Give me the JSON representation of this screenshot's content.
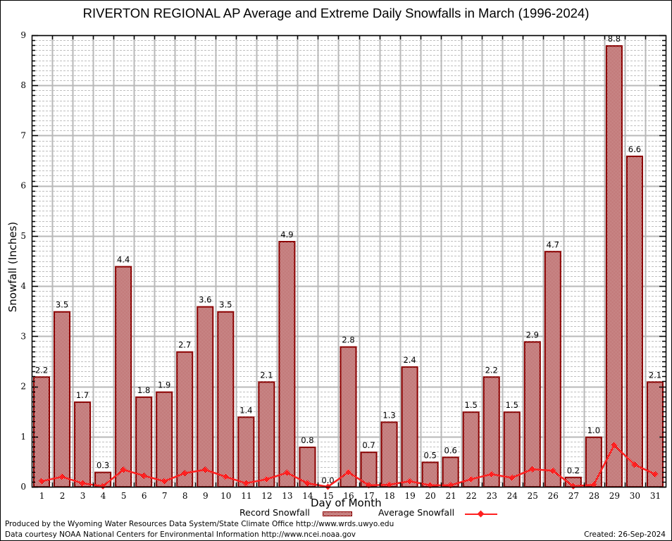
{
  "chart_data": {
    "type": "bar",
    "title": "RIVERTON REGIONAL AP Average and Extreme Daily Snowfalls in March (1996-2024)",
    "xlabel": "Day of Month",
    "ylabel": "Snowfall (Inches)",
    "ylim": [
      0,
      9
    ],
    "yticks": [
      "0",
      "1",
      "2",
      "3",
      "4",
      "5",
      "6",
      "7",
      "8",
      "9"
    ],
    "grid": true,
    "legend_position": "bottom-center",
    "categories": [
      "1",
      "2",
      "3",
      "4",
      "5",
      "6",
      "7",
      "8",
      "9",
      "10",
      "11",
      "12",
      "13",
      "14",
      "15",
      "16",
      "17",
      "18",
      "19",
      "20",
      "21",
      "22",
      "23",
      "24",
      "25",
      "26",
      "27",
      "28",
      "29",
      "30",
      "31"
    ],
    "series": [
      {
        "name": "Record Snowfall",
        "type": "bar",
        "color": "#8b0000",
        "values": [
          2.2,
          3.5,
          1.7,
          0.3,
          4.4,
          1.8,
          1.9,
          2.7,
          3.6,
          3.5,
          1.4,
          2.1,
          4.9,
          0.8,
          0.0,
          2.8,
          0.7,
          1.3,
          2.4,
          0.5,
          0.6,
          1.5,
          2.2,
          1.5,
          2.9,
          4.7,
          0.2,
          1.0,
          8.8,
          6.6,
          2.1
        ],
        "labels": [
          "2.2",
          "3.5",
          "1.7",
          "0.3",
          "4.4",
          "1.8",
          "1.9",
          "2.7",
          "3.6",
          "3.5",
          "1.4",
          "2.1",
          "4.9",
          "0.8",
          "0.0",
          "2.8",
          "0.7",
          "1.3",
          "2.4",
          "0.5",
          "0.6",
          "1.5",
          "2.2",
          "1.5",
          "2.9",
          "4.7",
          "0.2",
          "1.0",
          "8.8",
          "6.6",
          "2.1"
        ]
      },
      {
        "name": "Average Snowfall",
        "type": "line",
        "color": "#ff2020",
        "values": [
          0.11,
          0.2,
          0.07,
          0.01,
          0.34,
          0.22,
          0.11,
          0.27,
          0.34,
          0.2,
          0.07,
          0.15,
          0.28,
          0.07,
          0.0,
          0.29,
          0.03,
          0.04,
          0.11,
          0.03,
          0.03,
          0.15,
          0.25,
          0.18,
          0.35,
          0.32,
          0.01,
          0.04,
          0.83,
          0.44,
          0.25
        ]
      }
    ]
  },
  "legend": {
    "record_label": "Record Snowfall",
    "average_label": "Average Snowfall"
  },
  "footer": {
    "produced_by": "Produced by the Wyoming Water Resources Data System/State Climate Office http://www.wrds.uwyo.edu",
    "data_courtesy": "Data courtesy NOAA National Centers for Environmental Information http://www.ncei.noaa.gov",
    "created": "Created: 26-Sep-2024"
  }
}
